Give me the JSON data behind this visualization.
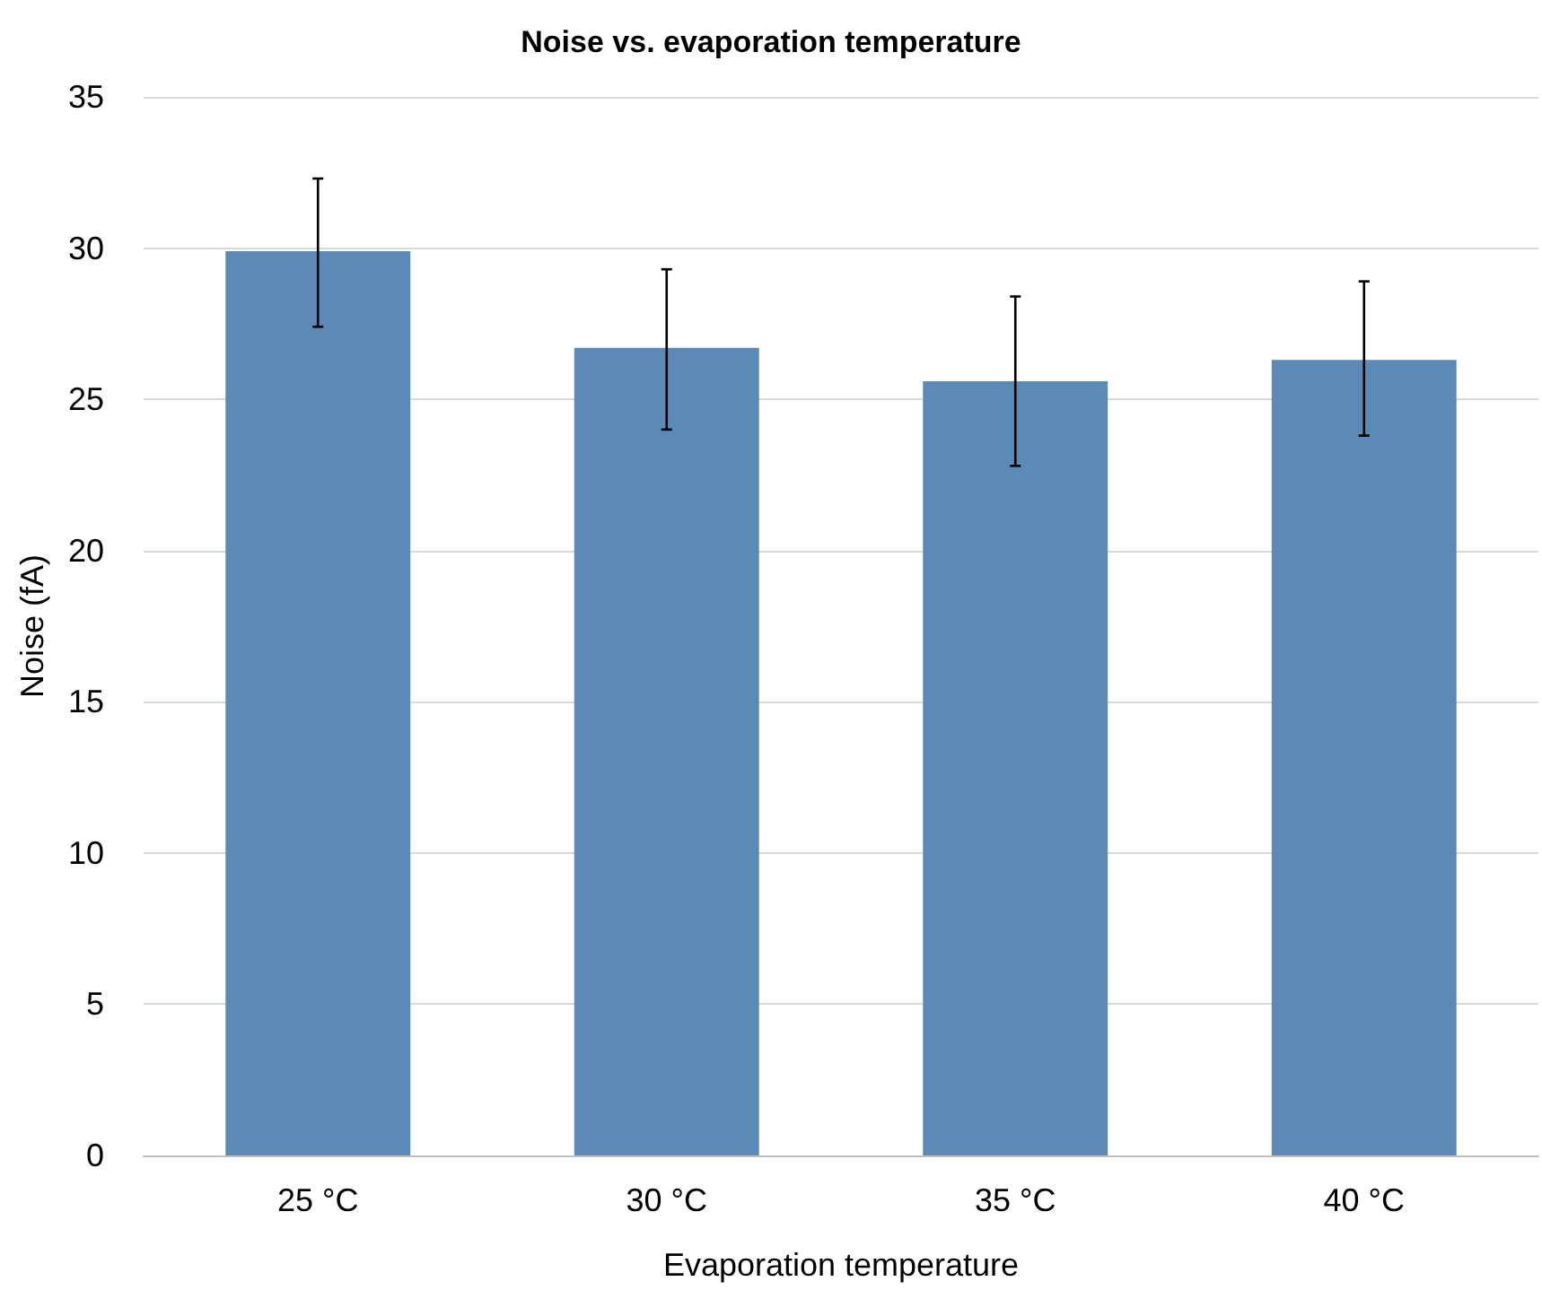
{
  "chart_data": {
    "type": "bar",
    "title": "Noise vs. evaporation temperature",
    "xlabel": "Evaporation temperature",
    "ylabel": "Noise (fA)",
    "categories": [
      "25 °C",
      "30 °C",
      "35 °C",
      "40 °C"
    ],
    "values": [
      29.9,
      26.7,
      25.6,
      26.3
    ],
    "errors": [
      [
        27.4,
        32.3
      ],
      [
        24.0,
        29.3
      ],
      [
        22.8,
        28.4
      ],
      [
        23.8,
        28.9
      ]
    ],
    "color": "#5a8ab5",
    "ylim": [
      0,
      35
    ],
    "yticks": [
      0,
      5,
      10,
      15,
      20,
      25,
      30,
      35
    ],
    "grid": "y"
  }
}
